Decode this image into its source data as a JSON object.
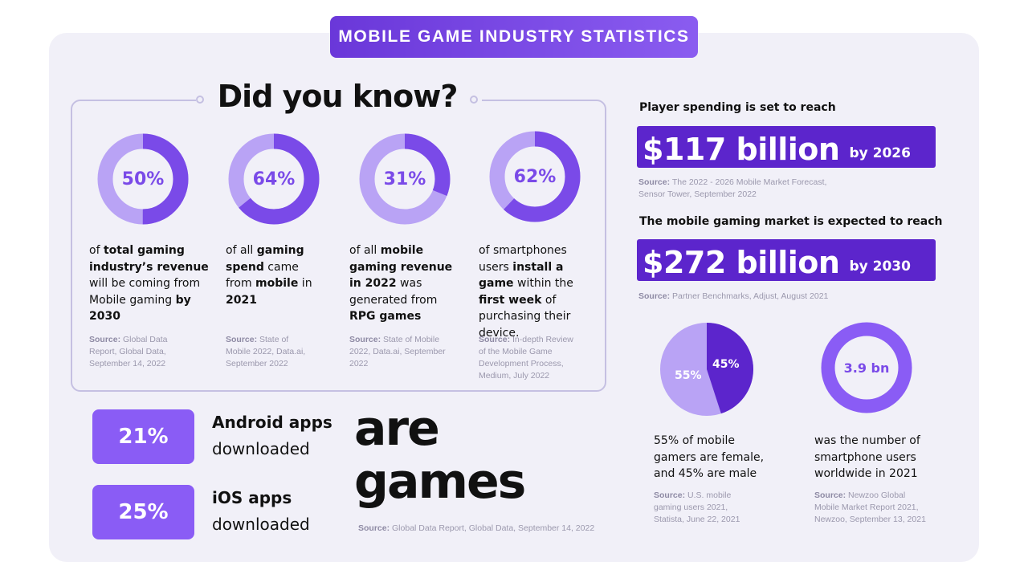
{
  "banner": {
    "title": "MOBILE GAME INDUSTRY STATISTICS"
  },
  "did_you_know": {
    "title": "Did you know?",
    "stats": [
      {
        "value": "50%",
        "fraction": 0.5,
        "text_html": "of <b>total gaming industry’s revenue</b> will be coming from Mobile gaming <b>by 2030</b>",
        "source_label": "Source:",
        "source_text": "Global Data Report, Global Data, September 14, 2022"
      },
      {
        "value": "64%",
        "fraction": 0.64,
        "text_html": "of all <b>gaming spend</b> came from <b>mobile</b> in <b>2021</b>",
        "source_label": "Source:",
        "source_text": "State of Mobile 2022, Data.ai, September 2022"
      },
      {
        "value": "31%",
        "fraction": 0.31,
        "text_html": "of all <b>mobile gaming revenue in 2022</b> was generated from <b>RPG games</b>",
        "source_label": "Source:",
        "source_text": "State of Mobile 2022, Data.ai, September 2022"
      },
      {
        "value": "62%",
        "fraction": 0.62,
        "text_html": "of smartphones users <b>install a game</b> within the <b>first week</b> of purchasing their device.",
        "source_label": "Source:",
        "source_text": "In-depth Review of the Mobile Game Development Process, Medium, July 2022"
      }
    ]
  },
  "apps": {
    "android": {
      "value": "21%",
      "title": "Android apps",
      "sub": "downloaded"
    },
    "ios": {
      "value": "25%",
      "title": "iOS apps",
      "sub": "downloaded"
    },
    "word_are": "are",
    "word_games": "games",
    "source_label": "Source:",
    "source_text": "Global Data Report, Global Data, September 14, 2022"
  },
  "spending": {
    "heading": "Player spending is set to reach",
    "amount": "$117 billion",
    "by": "by 2026",
    "source_label": "Source:",
    "source_text": "The 2022 - 2026 Mobile Market Forecast, Sensor Tower, September 2022"
  },
  "market": {
    "heading": "The mobile gaming market is expected to reach",
    "amount": "$272 billion",
    "by": "by 2030",
    "source_label": "Source:",
    "source_text": "Partner Benchmarks, Adjust, August 2021"
  },
  "gender": {
    "female_label": "55%",
    "male_label": "45%",
    "female_fraction": 0.55,
    "male_fraction": 0.45,
    "text": "55% of mobile gamers are female, and 45% are male",
    "source_label": "Source:",
    "source_text": "U.S. mobile gaming users 2021, Statista, June 22, 2021"
  },
  "users": {
    "value": "3.9 bn",
    "text": "was the number of smartphone users worldwide in 2021",
    "source_label": "Source:",
    "source_text": "Newzoo Global Mobile Market Report 2021, Newzoo, September 13, 2021"
  },
  "colors": {
    "primary": "#7a4ae8",
    "light": "#b9a3f5",
    "dark": "#5c25cc",
    "pill": "#8a5cf5",
    "card": "#f1f0f8"
  }
}
